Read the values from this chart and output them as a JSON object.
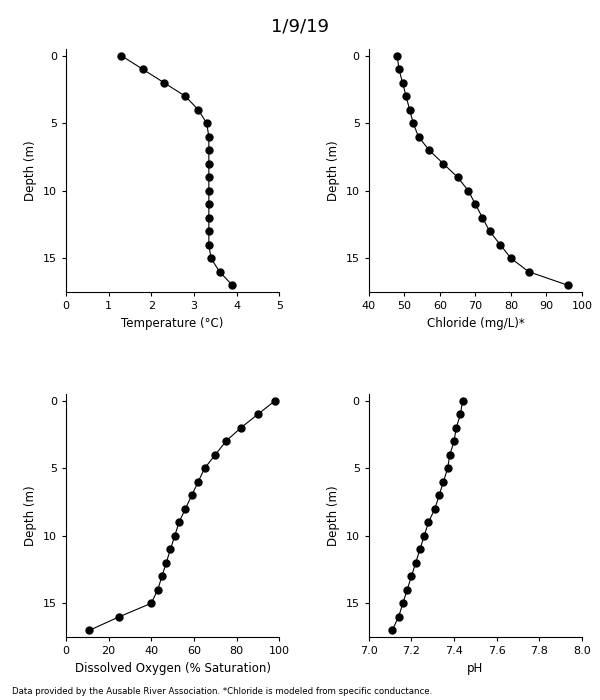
{
  "title": "1/9/19",
  "footnote": "Data provided by the Ausable River Association. *Chloride is modeled from specific conductance.",
  "temp": {
    "depth": [
      0,
      1,
      2,
      3,
      4,
      5,
      6,
      7,
      8,
      9,
      10,
      11,
      12,
      13,
      14,
      15,
      16,
      17
    ],
    "values": [
      1.3,
      1.8,
      2.3,
      2.8,
      3.1,
      3.3,
      3.35,
      3.35,
      3.35,
      3.35,
      3.35,
      3.35,
      3.35,
      3.35,
      3.35,
      3.4,
      3.6,
      3.9
    ],
    "xlabel": "Temperature (°C)",
    "xlim": [
      0,
      5
    ],
    "xticks": [
      0,
      1,
      2,
      3,
      4,
      5
    ],
    "ylim": [
      17.5,
      -0.5
    ],
    "yticks": [
      0,
      5,
      10,
      15
    ]
  },
  "chloride": {
    "depth": [
      0,
      1,
      2,
      3,
      4,
      5,
      6,
      7,
      8,
      9,
      10,
      11,
      12,
      13,
      14,
      15,
      16,
      17
    ],
    "values": [
      48,
      48.5,
      49.5,
      50.5,
      51.5,
      52.5,
      54,
      57,
      61,
      65,
      68,
      70,
      72,
      74,
      77,
      80,
      85,
      96
    ],
    "xlabel": "Chloride (mg/L)*",
    "xlim": [
      40,
      100
    ],
    "xticks": [
      40,
      50,
      60,
      70,
      80,
      90,
      100
    ],
    "ylim": [
      17.5,
      -0.5
    ],
    "yticks": [
      0,
      5,
      10,
      15
    ]
  },
  "do": {
    "depth": [
      0,
      1,
      2,
      3,
      4,
      5,
      6,
      7,
      8,
      9,
      10,
      11,
      12,
      13,
      14,
      15,
      16,
      17
    ],
    "values": [
      98,
      90,
      82,
      75,
      70,
      65,
      62,
      59,
      56,
      53,
      51,
      49,
      47,
      45,
      43,
      40,
      25,
      11
    ],
    "xlabel": "Dissolved Oxygen (% Saturation)",
    "xlim": [
      0,
      100
    ],
    "xticks": [
      0,
      20,
      40,
      60,
      80,
      100
    ],
    "ylim": [
      17.5,
      -0.5
    ],
    "yticks": [
      0,
      5,
      10,
      15
    ]
  },
  "ph": {
    "depth": [
      0,
      1,
      2,
      3,
      4,
      5,
      6,
      7,
      8,
      9,
      10,
      11,
      12,
      13,
      14,
      15,
      16,
      17
    ],
    "values": [
      7.44,
      7.43,
      7.41,
      7.4,
      7.38,
      7.37,
      7.35,
      7.33,
      7.31,
      7.28,
      7.26,
      7.24,
      7.22,
      7.2,
      7.18,
      7.16,
      7.14,
      7.11
    ],
    "xlabel": "pH",
    "xlim": [
      7.0,
      8.0
    ],
    "xticks": [
      7.0,
      7.2,
      7.4,
      7.6,
      7.8,
      8.0
    ],
    "ylim": [
      17.5,
      -0.5
    ],
    "yticks": [
      0,
      5,
      10,
      15
    ]
  },
  "ylabel": "Depth (m)",
  "line_color": "#000000",
  "marker": "o",
  "marker_size": 5,
  "marker_color": "#000000"
}
